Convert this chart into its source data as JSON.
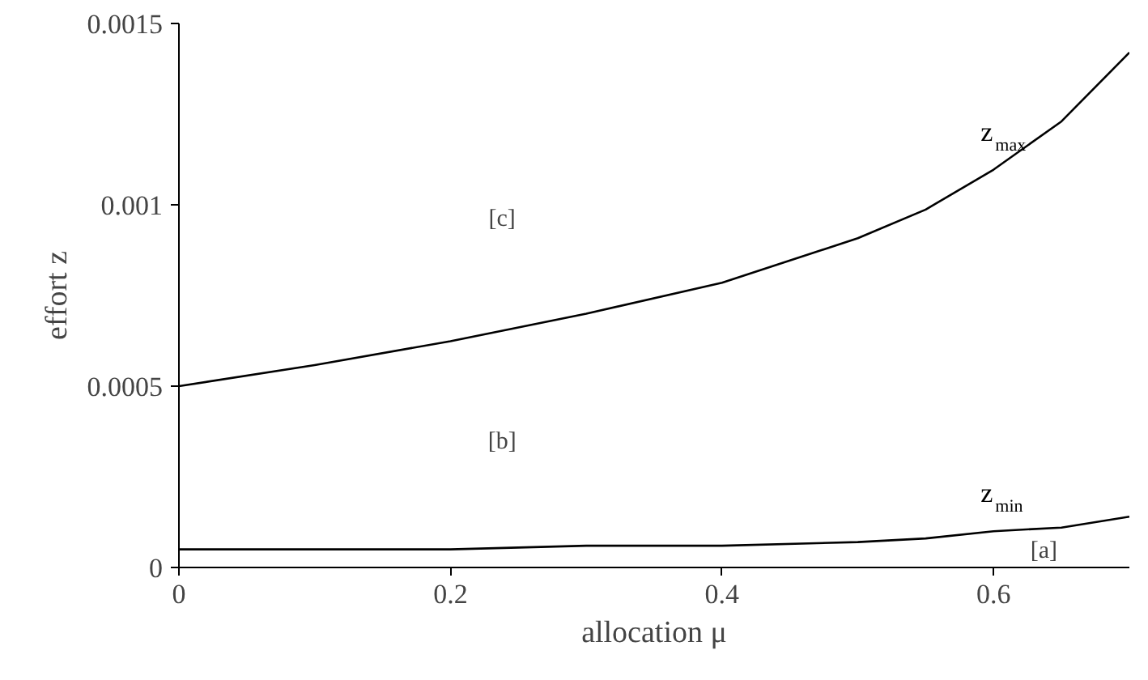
{
  "chart_data": {
    "type": "line",
    "xlabel": "allocation μ",
    "ylabel": "effort z",
    "x": [
      0,
      0.1,
      0.2,
      0.3,
      0.4,
      0.5,
      0.55,
      0.6,
      0.65,
      0.7
    ],
    "series": [
      {
        "name": "z$_{max}$",
        "color": "#000000",
        "values": [
          0.0005,
          0.000558,
          0.000624,
          0.0007,
          0.000785,
          0.000908,
          0.000987,
          0.001097,
          0.00123,
          0.00142
        ]
      },
      {
        "name": "z$_{min}$",
        "color": "#000000",
        "values": [
          5e-05,
          5e-05,
          5e-05,
          6e-05,
          6e-05,
          7e-05,
          8e-05,
          0.0001,
          0.00011,
          0.00014
        ]
      }
    ],
    "annotations": [
      "[c]",
      "[b]",
      "[a]"
    ],
    "xlim": [
      0,
      0.7
    ],
    "ylim": [
      0,
      0.0015
    ],
    "xticks": [
      0,
      0.2,
      0.4,
      0.6
    ],
    "yticks": [
      0,
      0.0005,
      0.001,
      0.0015
    ],
    "grid": false,
    "marker": "none",
    "line_style": "solid"
  }
}
